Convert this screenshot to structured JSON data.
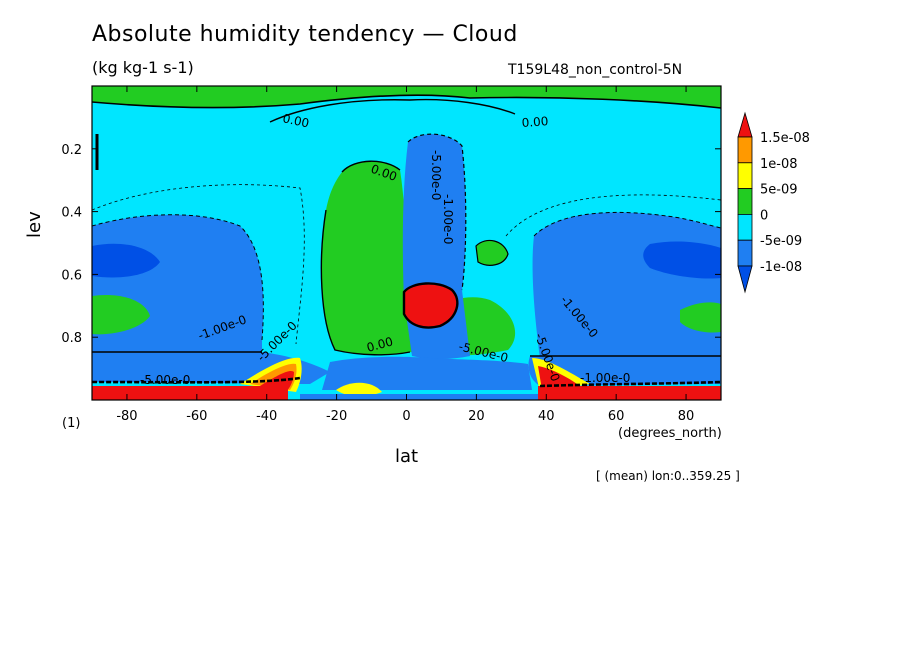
{
  "header": {
    "title": "Absolute humidity tendency — Cloud",
    "units": "(kg kg-1 s-1)",
    "run": "T159L48_non_control-5N",
    "mean_note": "[ (mean) lon:0..359.25 ]"
  },
  "chart_data": {
    "type": "heatmap",
    "title": "Absolute humidity tendency — Cloud",
    "xlabel": "lat",
    "xunit": "(degrees_north)",
    "ylabel": "lev",
    "yunit": "(1)",
    "xlim": [
      -90,
      90
    ],
    "ylim": [
      1.0,
      0.0
    ],
    "x_ticks": [
      -80,
      -60,
      -40,
      -20,
      0,
      20,
      40,
      60,
      80
    ],
    "x_tick_labels": [
      "-80",
      "-60",
      "-40",
      "-20",
      "0",
      "20",
      "40",
      "60",
      "80"
    ],
    "y_ticks": [
      0.2,
      0.4,
      0.6,
      0.8
    ],
    "y_tick_labels": [
      "0.2",
      "0.4",
      "0.6",
      "0.8"
    ],
    "colorbar": {
      "levels": [
        -1e-08,
        -5e-09,
        0,
        5e-09,
        1e-08,
        1.5e-08
      ],
      "labels": [
        "-1e-08",
        "-5e-09",
        "0",
        "5e-09",
        "1e-08",
        "1.5e-08"
      ],
      "colors": [
        "#1f7ff2",
        "#00e6ff",
        "#22cc22",
        "#ffff00",
        "#ff9900",
        "#ee1111"
      ],
      "extend_low_color": "#0050e6",
      "extend_high_color": "#ee1111"
    },
    "contour_labels": [
      "0.00",
      "0.00",
      "0.00",
      "0.00",
      "-5.00e-0",
      "-5.00e-0",
      "-1.00e-0",
      "-1.00e-0",
      "-5.00e-0",
      "-5.00e-0",
      "-5.00e-0",
      "-1.00e-0",
      "-1.00e-0"
    ]
  },
  "colors": {
    "bg": "#00e6ff",
    "neg_strong": "#1f7ff2",
    "neg_extreme": "#0050e6",
    "zero_pos": "#22cc22",
    "low_pos": "#ffff00",
    "mid_pos": "#ff9900",
    "high_pos": "#ee1111"
  }
}
